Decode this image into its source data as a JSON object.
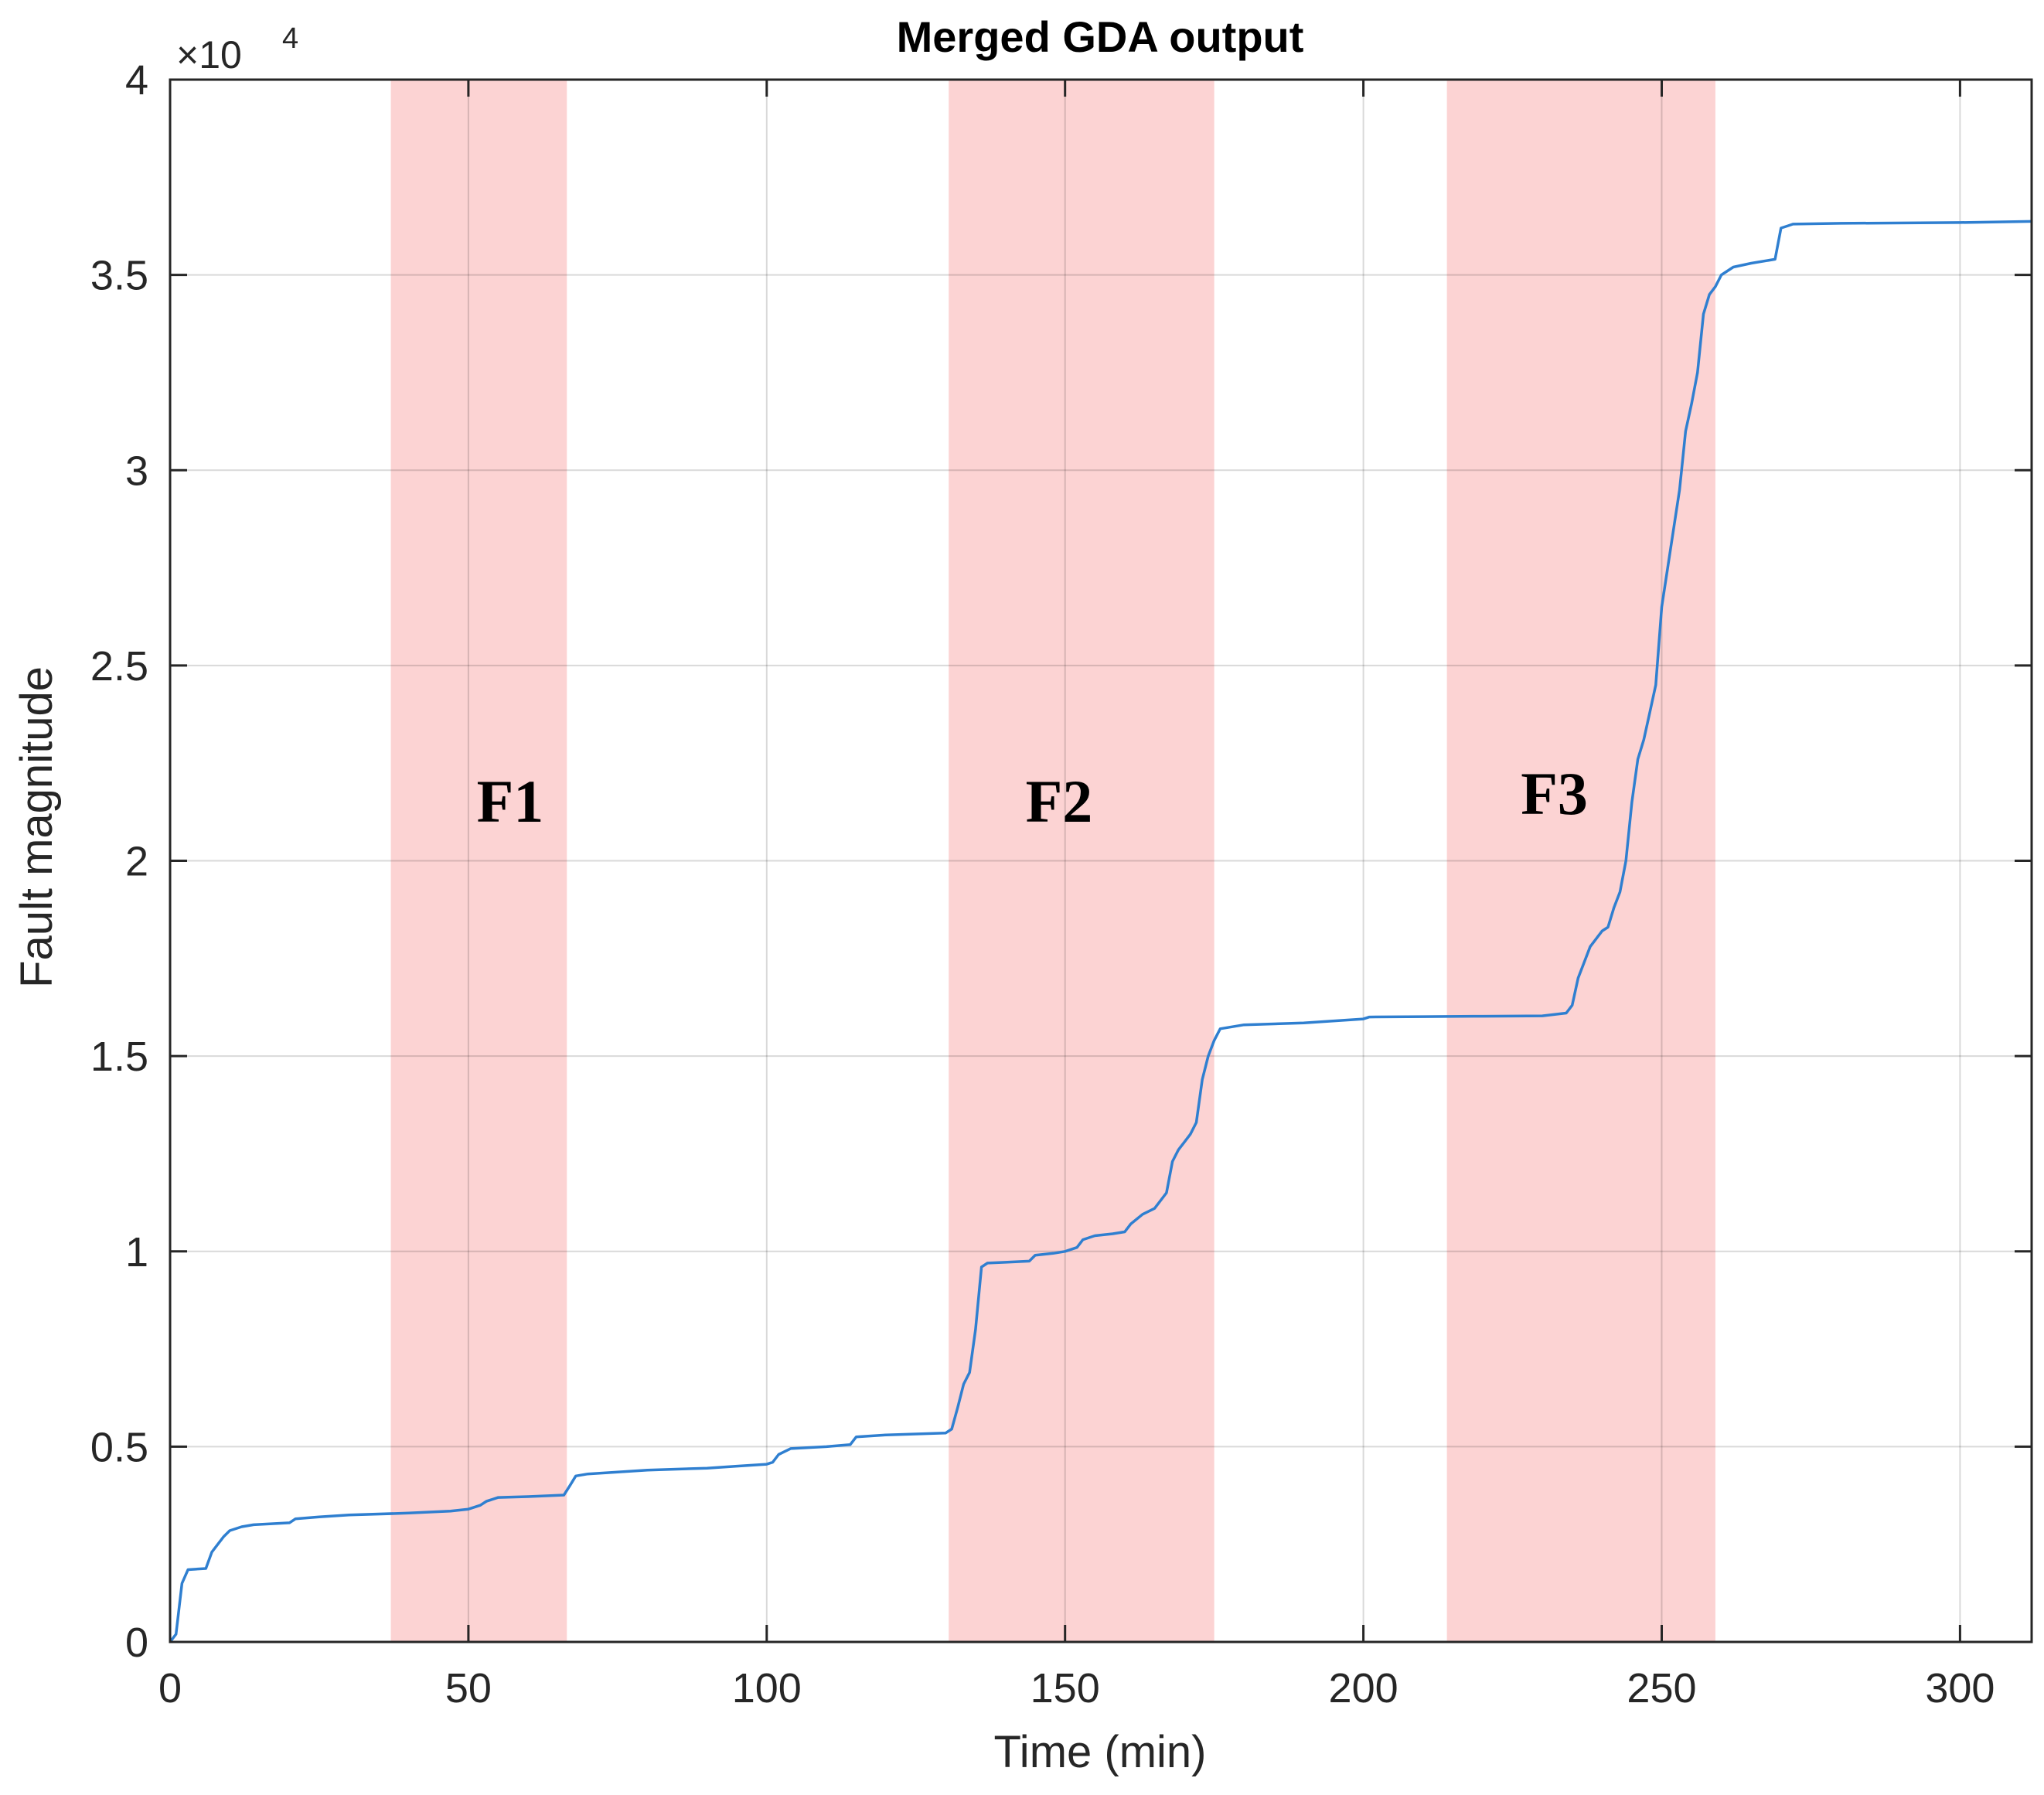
{
  "chart_data": {
    "type": "line",
    "title": "Merged GDA output",
    "xlabel": "Time (min)",
    "ylabel": "Fault magnitude",
    "xlim": [
      0,
      312
    ],
    "ylim": [
      0,
      40000
    ],
    "grid": true,
    "y_exponent_label": {
      "base": "×10",
      "exponent": "4"
    },
    "xticks": [
      0,
      50,
      100,
      150,
      200,
      250,
      300
    ],
    "xtick_labels": [
      "0",
      "50",
      "100",
      "150",
      "200",
      "250",
      "300"
    ],
    "yticks": [
      0,
      5000,
      10000,
      15000,
      20000,
      25000,
      30000,
      35000,
      40000
    ],
    "ytick_labels": [
      "0",
      "0.5",
      "1",
      "1.5",
      "2",
      "2.5",
      "3",
      "3.5",
      "4"
    ],
    "line_color": "#2f7fd0",
    "region_color": "#fcd3d3",
    "region_label_color": "#000000",
    "regions": [
      {
        "label": "F1",
        "x_start": 37,
        "x_end": 66.5,
        "label_x": 57,
        "label_y": 21000
      },
      {
        "label": "F2",
        "x_start": 130.5,
        "x_end": 175,
        "label_x": 149,
        "label_y": 21000
      },
      {
        "label": "F3",
        "x_start": 214,
        "x_end": 259,
        "label_x": 232,
        "label_y": 21200
      }
    ],
    "series": [
      {
        "x": [
          0,
          1,
          2,
          3,
          6,
          7,
          8,
          9,
          10,
          12,
          14,
          20,
          21,
          25,
          30,
          40,
          47,
          50,
          52,
          53,
          55,
          60,
          66,
          67,
          68,
          70,
          75,
          80,
          90,
          95,
          100,
          101,
          102,
          104,
          110,
          114,
          115,
          120,
          130,
          131,
          132,
          133,
          134,
          135,
          136,
          137,
          140,
          144,
          145,
          148,
          150,
          152,
          153,
          155,
          158,
          160,
          161,
          163,
          165,
          167,
          168,
          169,
          170,
          171,
          172,
          173,
          174,
          175,
          176,
          180,
          190,
          200,
          201,
          210,
          220,
          230,
          234,
          235,
          236,
          237,
          238,
          240,
          241,
          242,
          243,
          244,
          245,
          246,
          247,
          248,
          249,
          250,
          251,
          252,
          253,
          254,
          255,
          256,
          257,
          258,
          259,
          260,
          262,
          265,
          269,
          270,
          271,
          272,
          280,
          300,
          312
        ],
        "y": [
          0,
          200,
          1500,
          1850,
          1880,
          2300,
          2500,
          2700,
          2850,
          2950,
          3000,
          3050,
          3150,
          3200,
          3250,
          3300,
          3350,
          3400,
          3500,
          3600,
          3700,
          3720,
          3760,
          4000,
          4250,
          4300,
          4350,
          4400,
          4450,
          4500,
          4550,
          4600,
          4800,
          4950,
          5000,
          5050,
          5250,
          5300,
          5350,
          5450,
          6000,
          6600,
          6900,
          8000,
          9600,
          9700,
          9720,
          9750,
          9900,
          9950,
          10000,
          10100,
          10300,
          10400,
          10450,
          10500,
          10700,
          10950,
          11100,
          11500,
          12300,
          12600,
          12800,
          13000,
          13300,
          14400,
          15000,
          15400,
          15700,
          15800,
          15850,
          15950,
          16000,
          16010,
          16020,
          16030,
          16100,
          16300,
          17000,
          17400,
          17800,
          18200,
          18300,
          18800,
          19200,
          20000,
          21500,
          22600,
          23100,
          23800,
          24500,
          26500,
          27500,
          28500,
          29500,
          31000,
          31700,
          32500,
          34000,
          34500,
          34700,
          35000,
          35200,
          35300,
          35400,
          36200,
          36250,
          36300,
          36320,
          36340,
          36370
        ]
      }
    ]
  }
}
